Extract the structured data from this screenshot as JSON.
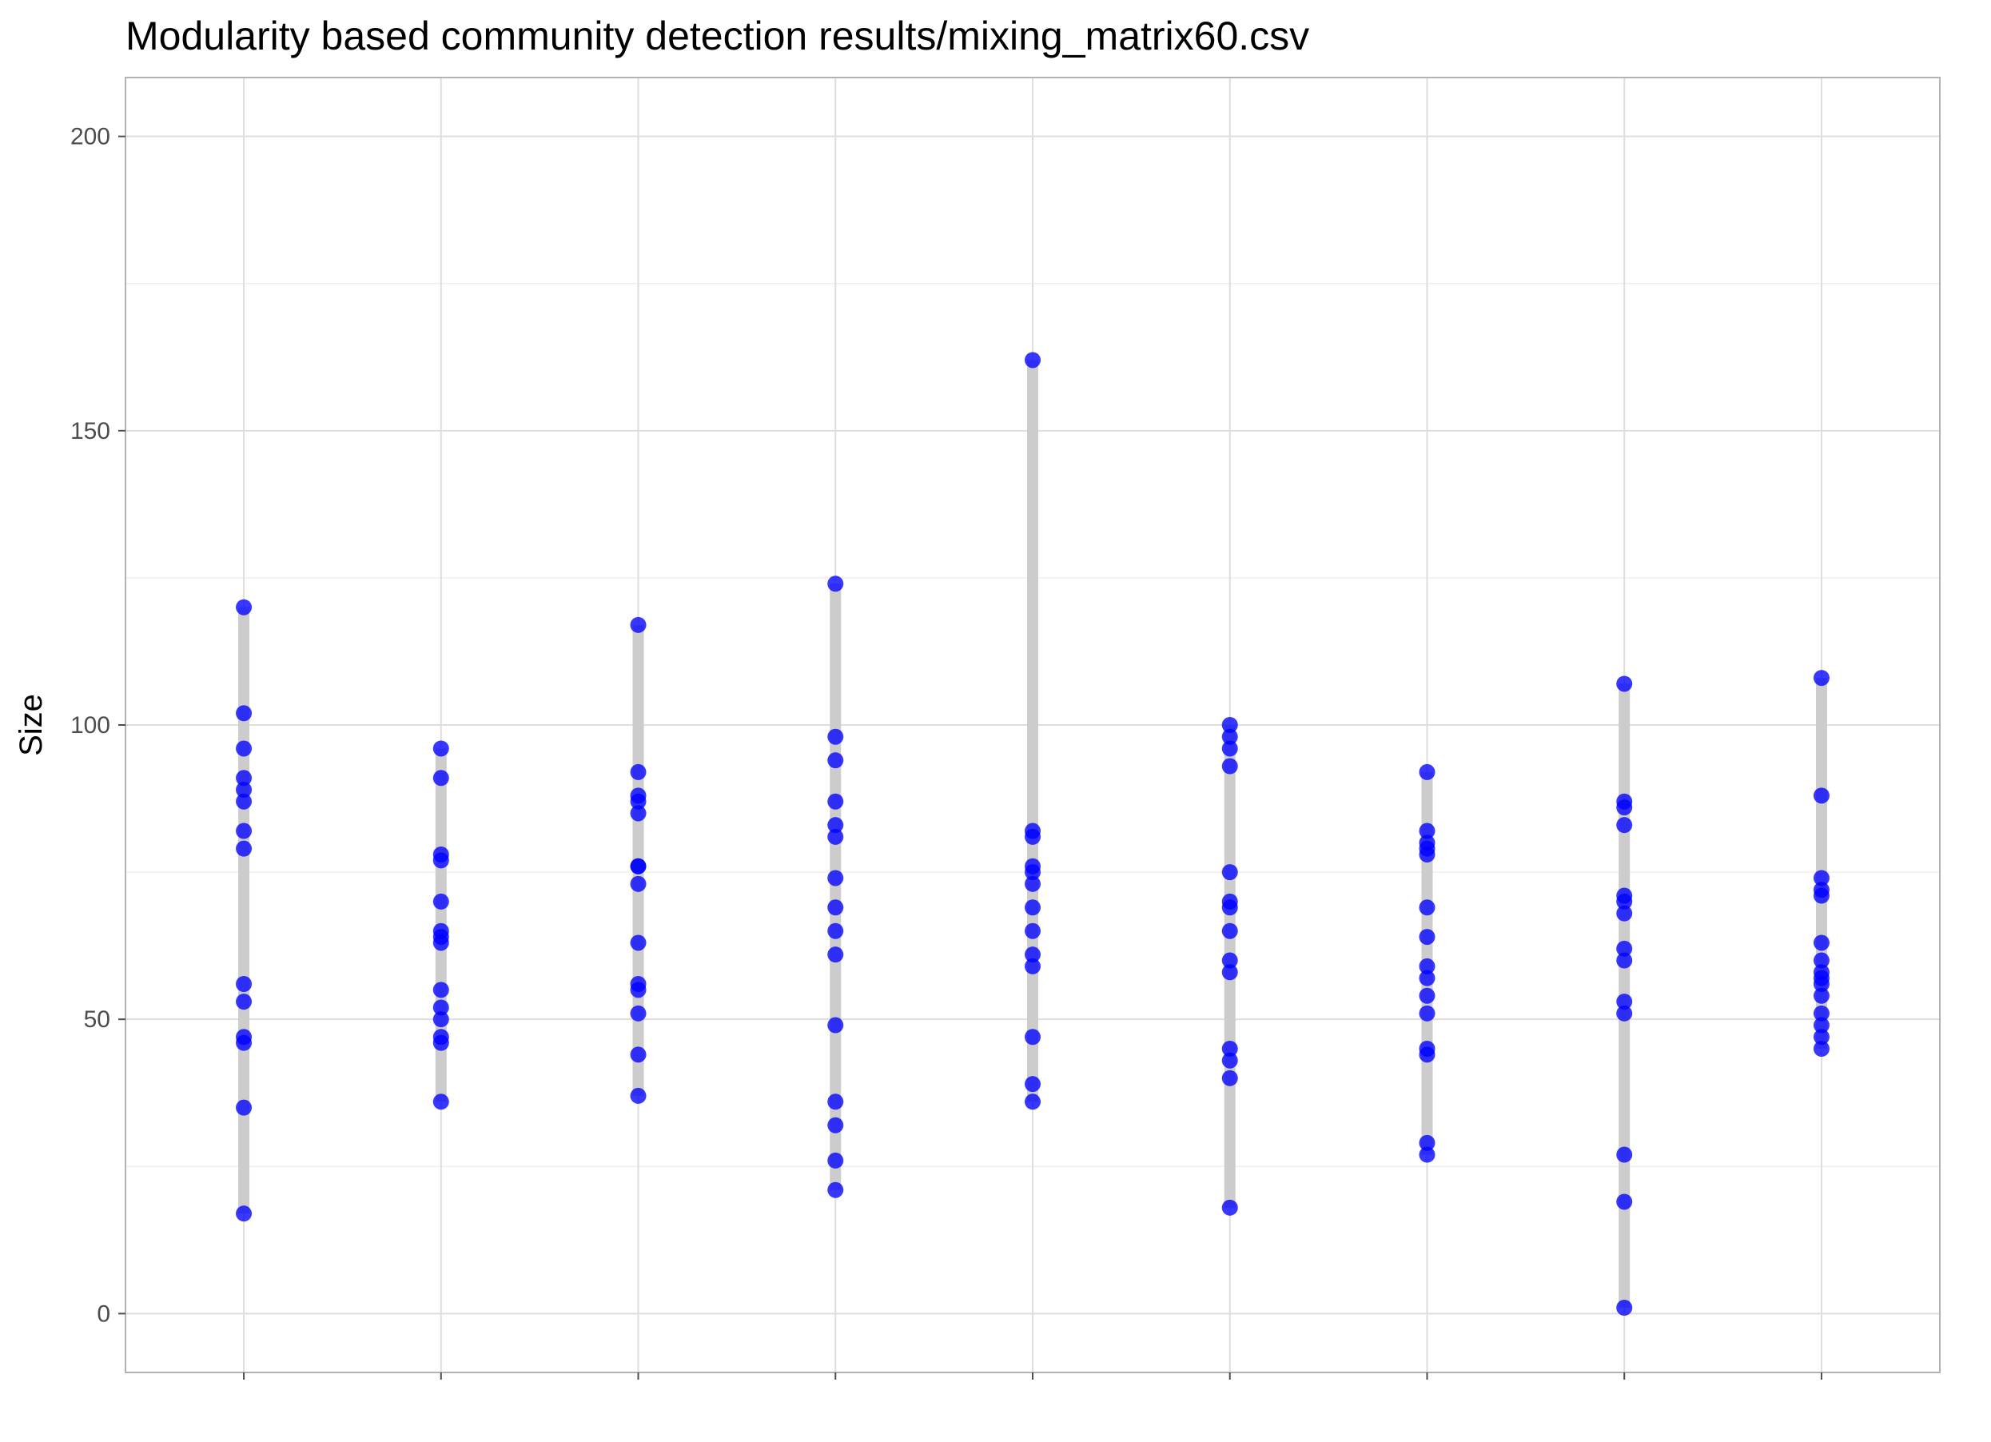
{
  "chart_data": {
    "type": "scatter",
    "title": "Modularity based community detection results/mixing_matrix60.csv",
    "xlabel": "",
    "ylabel": "Size",
    "ylim": [
      -10,
      210
    ],
    "yticks": [
      0,
      50,
      100,
      150,
      200
    ],
    "grid": true,
    "legend": "none",
    "colors": {
      "point": "#0000ff",
      "range_bar": "#cccccc",
      "grid_major": "#dedede",
      "grid_minor": "#efefef",
      "panel_border": "#b3b3b3",
      "tick_mark": "#4d4d4d"
    },
    "series": [
      {
        "x": 1,
        "values": [
          120,
          102,
          96,
          91,
          89,
          87,
          82,
          79,
          56,
          53,
          47,
          46,
          35,
          17
        ]
      },
      {
        "x": 2,
        "values": [
          96,
          91,
          78,
          77,
          70,
          65,
          64,
          63,
          55,
          52,
          50,
          47,
          46,
          36
        ]
      },
      {
        "x": 3,
        "values": [
          117,
          92,
          88,
          87,
          85,
          76,
          76,
          73,
          63,
          56,
          55,
          51,
          44,
          37
        ]
      },
      {
        "x": 4,
        "values": [
          124,
          98,
          94,
          87,
          83,
          81,
          74,
          69,
          65,
          61,
          49,
          36,
          32,
          26,
          21
        ]
      },
      {
        "x": 5,
        "values": [
          162,
          82,
          81,
          76,
          75,
          73,
          69,
          65,
          61,
          59,
          47,
          39,
          36
        ]
      },
      {
        "x": 6,
        "values": [
          100,
          98,
          96,
          93,
          75,
          70,
          69,
          65,
          60,
          58,
          45,
          43,
          40,
          18
        ]
      },
      {
        "x": 7,
        "values": [
          92,
          82,
          80,
          79,
          78,
          69,
          64,
          59,
          57,
          54,
          51,
          45,
          44,
          29,
          27
        ]
      },
      {
        "x": 8,
        "values": [
          107,
          87,
          86,
          83,
          71,
          70,
          68,
          62,
          60,
          53,
          51,
          27,
          19,
          1
        ]
      },
      {
        "x": 9,
        "values": [
          108,
          88,
          74,
          72,
          71,
          63,
          60,
          58,
          57,
          56,
          54,
          51,
          49,
          47,
          45
        ]
      }
    ]
  }
}
